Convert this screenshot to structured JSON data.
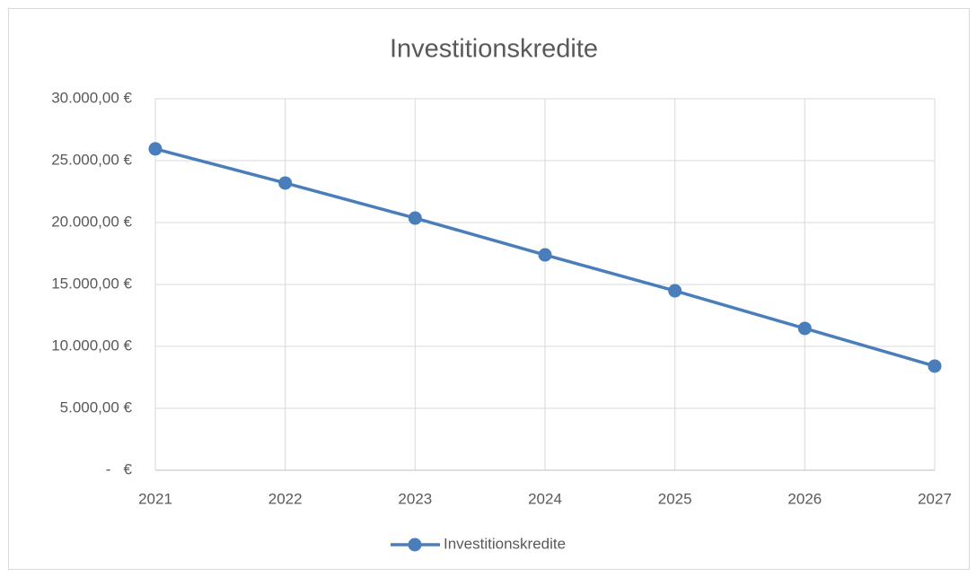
{
  "chart_data": {
    "type": "line",
    "title": "Investitionskredite",
    "categories": [
      "2021",
      "2022",
      "2023",
      "2024",
      "2025",
      "2026",
      "2027"
    ],
    "series": [
      {
        "name": "Investitionskredite",
        "color": "#4a7ebb",
        "values": [
          25950,
          23190,
          20360,
          17390,
          14490,
          11450,
          8410
        ]
      }
    ],
    "ylim": [
      0,
      30000
    ],
    "yticks": [
      {
        "value": 0,
        "label": "-   €"
      },
      {
        "value": 5000,
        "label": "5.000,00 €"
      },
      {
        "value": 10000,
        "label": "10.000,00 €"
      },
      {
        "value": 15000,
        "label": "15.000,00 €"
      },
      {
        "value": 20000,
        "label": "20.000,00 €"
      },
      {
        "value": 25000,
        "label": "25.000,00 €"
      },
      {
        "value": 30000,
        "label": "30.000,00 €"
      }
    ],
    "grid": true,
    "legend": "bottom"
  }
}
